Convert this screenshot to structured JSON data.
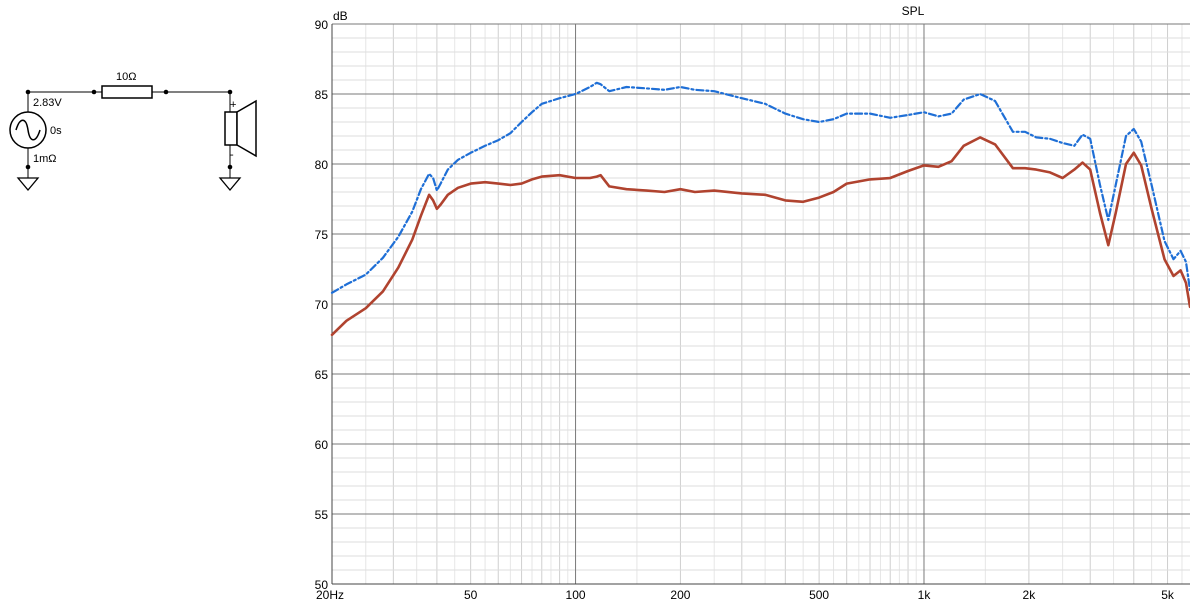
{
  "schematic": {
    "resistor_label": "10Ω",
    "source_voltage": "2.83V",
    "source_delay": "0s",
    "source_resistance": "1mΩ",
    "plus_label": "+",
    "minus_label": "-"
  },
  "chart_data": {
    "type": "line",
    "title": "SPL",
    "ylabel": "dB",
    "xscale": "log",
    "xlim": [
      20,
      5800
    ],
    "ylim": [
      50,
      90
    ],
    "grid": true,
    "x_tick_labels": [
      {
        "value": 20,
        "label": "20Hz"
      },
      {
        "value": 50,
        "label": "50"
      },
      {
        "value": 100,
        "label": "100"
      },
      {
        "value": 200,
        "label": "200"
      },
      {
        "value": 500,
        "label": "500"
      },
      {
        "value": 1000,
        "label": "1k"
      },
      {
        "value": 2000,
        "label": "2k"
      },
      {
        "value": 5000,
        "label": "5k"
      }
    ],
    "y_ticks": [
      50,
      55,
      60,
      65,
      70,
      75,
      80,
      85,
      90
    ],
    "series": [
      {
        "color": "#1f6fd6",
        "style": "dash-dot",
        "points": [
          [
            20,
            70.8
          ],
          [
            22,
            71.4
          ],
          [
            25,
            72.1
          ],
          [
            28,
            73.3
          ],
          [
            31,
            74.8
          ],
          [
            34,
            76.6
          ],
          [
            36,
            78.2
          ],
          [
            38,
            79.3
          ],
          [
            39,
            79.0
          ],
          [
            40,
            78.1
          ],
          [
            41,
            78.6
          ],
          [
            43,
            79.6
          ],
          [
            46,
            80.3
          ],
          [
            50,
            80.8
          ],
          [
            55,
            81.3
          ],
          [
            60,
            81.7
          ],
          [
            65,
            82.2
          ],
          [
            70,
            83.0
          ],
          [
            75,
            83.7
          ],
          [
            80,
            84.3
          ],
          [
            90,
            84.7
          ],
          [
            100,
            85.0
          ],
          [
            110,
            85.5
          ],
          [
            115,
            85.8
          ],
          [
            118,
            85.7
          ],
          [
            125,
            85.2
          ],
          [
            140,
            85.5
          ],
          [
            160,
            85.4
          ],
          [
            180,
            85.3
          ],
          [
            200,
            85.5
          ],
          [
            220,
            85.3
          ],
          [
            250,
            85.2
          ],
          [
            300,
            84.7
          ],
          [
            350,
            84.3
          ],
          [
            400,
            83.6
          ],
          [
            450,
            83.2
          ],
          [
            500,
            83.0
          ],
          [
            550,
            83.2
          ],
          [
            600,
            83.6
          ],
          [
            700,
            83.6
          ],
          [
            800,
            83.3
          ],
          [
            900,
            83.5
          ],
          [
            1000,
            83.7
          ],
          [
            1100,
            83.4
          ],
          [
            1200,
            83.6
          ],
          [
            1300,
            84.6
          ],
          [
            1450,
            85.0
          ],
          [
            1600,
            84.5
          ],
          [
            1800,
            82.3
          ],
          [
            1950,
            82.3
          ],
          [
            2100,
            81.9
          ],
          [
            2300,
            81.8
          ],
          [
            2500,
            81.5
          ],
          [
            2700,
            81.3
          ],
          [
            2850,
            82.1
          ],
          [
            3000,
            81.8
          ],
          [
            3200,
            78.5
          ],
          [
            3380,
            76.0
          ],
          [
            3550,
            78.5
          ],
          [
            3800,
            82.0
          ],
          [
            4000,
            82.5
          ],
          [
            4200,
            81.6
          ],
          [
            4500,
            78.5
          ],
          [
            4900,
            74.5
          ],
          [
            5200,
            73.2
          ],
          [
            5450,
            73.8
          ],
          [
            5650,
            73.0
          ],
          [
            5800,
            71.0
          ]
        ]
      },
      {
        "color": "#b0432f",
        "style": "solid",
        "points": [
          [
            20,
            67.8
          ],
          [
            22,
            68.8
          ],
          [
            25,
            69.7
          ],
          [
            28,
            70.9
          ],
          [
            31,
            72.6
          ],
          [
            34,
            74.6
          ],
          [
            36,
            76.3
          ],
          [
            38,
            77.8
          ],
          [
            39,
            77.4
          ],
          [
            40,
            76.8
          ],
          [
            41,
            77.1
          ],
          [
            43,
            77.8
          ],
          [
            46,
            78.3
          ],
          [
            50,
            78.6
          ],
          [
            55,
            78.7
          ],
          [
            60,
            78.6
          ],
          [
            65,
            78.5
          ],
          [
            70,
            78.6
          ],
          [
            75,
            78.9
          ],
          [
            80,
            79.1
          ],
          [
            90,
            79.2
          ],
          [
            100,
            79.0
          ],
          [
            110,
            79.0
          ],
          [
            115,
            79.1
          ],
          [
            118,
            79.2
          ],
          [
            125,
            78.4
          ],
          [
            140,
            78.2
          ],
          [
            160,
            78.1
          ],
          [
            180,
            78.0
          ],
          [
            200,
            78.2
          ],
          [
            220,
            78.0
          ],
          [
            250,
            78.1
          ],
          [
            300,
            77.9
          ],
          [
            350,
            77.8
          ],
          [
            400,
            77.4
          ],
          [
            450,
            77.3
          ],
          [
            500,
            77.6
          ],
          [
            550,
            78.0
          ],
          [
            600,
            78.6
          ],
          [
            700,
            78.9
          ],
          [
            800,
            79.0
          ],
          [
            900,
            79.5
          ],
          [
            1000,
            79.9
          ],
          [
            1100,
            79.8
          ],
          [
            1200,
            80.2
          ],
          [
            1300,
            81.3
          ],
          [
            1450,
            81.9
          ],
          [
            1600,
            81.4
          ],
          [
            1800,
            79.7
          ],
          [
            1950,
            79.7
          ],
          [
            2100,
            79.6
          ],
          [
            2300,
            79.4
          ],
          [
            2500,
            79.0
          ],
          [
            2700,
            79.6
          ],
          [
            2850,
            80.1
          ],
          [
            3000,
            79.6
          ],
          [
            3200,
            76.5
          ],
          [
            3380,
            74.2
          ],
          [
            3550,
            76.5
          ],
          [
            3800,
            80.0
          ],
          [
            4000,
            80.8
          ],
          [
            4200,
            79.9
          ],
          [
            4500,
            76.8
          ],
          [
            4900,
            73.2
          ],
          [
            5200,
            72.0
          ],
          [
            5450,
            72.4
          ],
          [
            5650,
            71.5
          ],
          [
            5800,
            69.8
          ]
        ]
      }
    ]
  }
}
